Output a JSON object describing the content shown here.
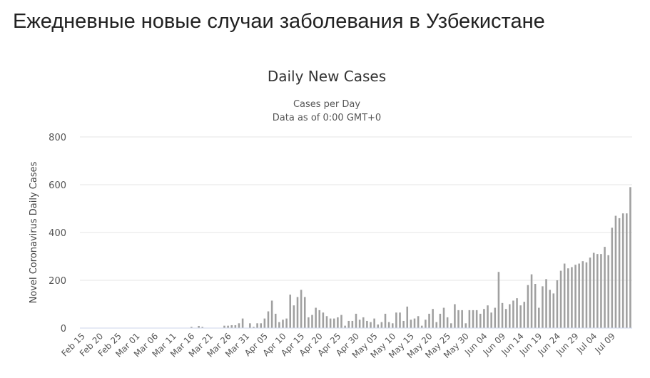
{
  "page": {
    "heading": "Ежедневные новые случаи заболевания в Узбекистане"
  },
  "chart_data": {
    "type": "bar",
    "title": "Daily New Cases",
    "subtitle_lines": [
      "Cases per Day",
      "Data as of 0:00 GMT+0"
    ],
    "xlabel": "",
    "ylabel": "Novel Coronavirus Daily Cases",
    "ylim": [
      0,
      800
    ],
    "y_ticks": [
      0,
      200,
      400,
      600,
      800
    ],
    "grid": true,
    "bar_color": "#a0a0a0",
    "x_tick_labels": [
      "Feb 15",
      "Feb 20",
      "Feb 25",
      "Mar 01",
      "Mar 06",
      "Mar 11",
      "Mar 16",
      "Mar 21",
      "Mar 26",
      "Mar 31",
      "Apr 05",
      "Apr 10",
      "Apr 15",
      "Apr 20",
      "Apr 25",
      "Apr 30",
      "May 05",
      "May 10",
      "May 15",
      "May 20",
      "May 25",
      "May 30",
      "Jun 04",
      "Jun 09",
      "Jun 14",
      "Jun 19",
      "Jun 24",
      "Jun 29",
      "Jul 04",
      "Jul 09"
    ],
    "x_tick_every": 5,
    "categories": [
      "Feb 15",
      "Feb 16",
      "Feb 17",
      "Feb 18",
      "Feb 19",
      "Feb 20",
      "Feb 21",
      "Feb 22",
      "Feb 23",
      "Feb 24",
      "Feb 25",
      "Feb 26",
      "Feb 27",
      "Feb 28",
      "Feb 29",
      "Mar 01",
      "Mar 02",
      "Mar 03",
      "Mar 04",
      "Mar 05",
      "Mar 06",
      "Mar 07",
      "Mar 08",
      "Mar 09",
      "Mar 10",
      "Mar 11",
      "Mar 12",
      "Mar 13",
      "Mar 14",
      "Mar 15",
      "Mar 16",
      "Mar 17",
      "Mar 18",
      "Mar 19",
      "Mar 20",
      "Mar 21",
      "Mar 22",
      "Mar 23",
      "Mar 24",
      "Mar 25",
      "Mar 26",
      "Mar 27",
      "Mar 28",
      "Mar 29",
      "Mar 30",
      "Mar 31",
      "Apr 01",
      "Apr 02",
      "Apr 03",
      "Apr 04",
      "Apr 05",
      "Apr 06",
      "Apr 07",
      "Apr 08",
      "Apr 09",
      "Apr 10",
      "Apr 11",
      "Apr 12",
      "Apr 13",
      "Apr 14",
      "Apr 15",
      "Apr 16",
      "Apr 17",
      "Apr 18",
      "Apr 19",
      "Apr 20",
      "Apr 21",
      "Apr 22",
      "Apr 23",
      "Apr 24",
      "Apr 25",
      "Apr 26",
      "Apr 27",
      "Apr 28",
      "Apr 29",
      "Apr 30",
      "May 01",
      "May 02",
      "May 03",
      "May 04",
      "May 05",
      "May 06",
      "May 07",
      "May 08",
      "May 09",
      "May 10",
      "May 11",
      "May 12",
      "May 13",
      "May 14",
      "May 15",
      "May 16",
      "May 17",
      "May 18",
      "May 19",
      "May 20",
      "May 21",
      "May 22",
      "May 23",
      "May 24",
      "May 25",
      "May 26",
      "May 27",
      "May 28",
      "May 29",
      "May 30",
      "May 31",
      "Jun 01",
      "Jun 02",
      "Jun 03",
      "Jun 04",
      "Jun 05",
      "Jun 06",
      "Jun 07",
      "Jun 08",
      "Jun 09",
      "Jun 10",
      "Jun 11",
      "Jun 12",
      "Jun 13",
      "Jun 14",
      "Jun 15",
      "Jun 16",
      "Jun 17",
      "Jun 18",
      "Jun 19",
      "Jun 20",
      "Jun 21",
      "Jun 22",
      "Jun 23",
      "Jun 24",
      "Jun 25",
      "Jun 26",
      "Jun 27",
      "Jun 28",
      "Jun 29",
      "Jun 30",
      "Jul 01",
      "Jul 02",
      "Jul 03",
      "Jul 04",
      "Jul 05",
      "Jul 06",
      "Jul 07",
      "Jul 08",
      "Jul 09",
      "Jul 10",
      "Jul 11",
      "Jul 12",
      "Jul 13",
      "Jul 14"
    ],
    "values": [
      0,
      0,
      0,
      0,
      0,
      0,
      0,
      0,
      0,
      0,
      0,
      0,
      0,
      0,
      0,
      0,
      0,
      0,
      0,
      0,
      0,
      0,
      0,
      0,
      0,
      0,
      0,
      0,
      0,
      0,
      5,
      0,
      9,
      5,
      0,
      0,
      0,
      0,
      0,
      10,
      10,
      12,
      12,
      20,
      40,
      0,
      20,
      5,
      20,
      20,
      40,
      70,
      115,
      60,
      25,
      35,
      40,
      140,
      95,
      130,
      160,
      130,
      45,
      55,
      85,
      75,
      65,
      50,
      40,
      40,
      45,
      55,
      10,
      30,
      30,
      60,
      35,
      45,
      30,
      25,
      40,
      15,
      25,
      60,
      25,
      20,
      65,
      65,
      30,
      90,
      35,
      40,
      50,
      10,
      35,
      60,
      80,
      25,
      60,
      85,
      45,
      20,
      100,
      75,
      75,
      20,
      75,
      75,
      75,
      60,
      80,
      95,
      65,
      85,
      235,
      105,
      80,
      100,
      115,
      125,
      95,
      110,
      180,
      225,
      185,
      85,
      175,
      205,
      160,
      145,
      200,
      240,
      270,
      250,
      255,
      265,
      270,
      280,
      275,
      295,
      315,
      310,
      310,
      340,
      305,
      420,
      470,
      460,
      480,
      480,
      590
    ]
  }
}
